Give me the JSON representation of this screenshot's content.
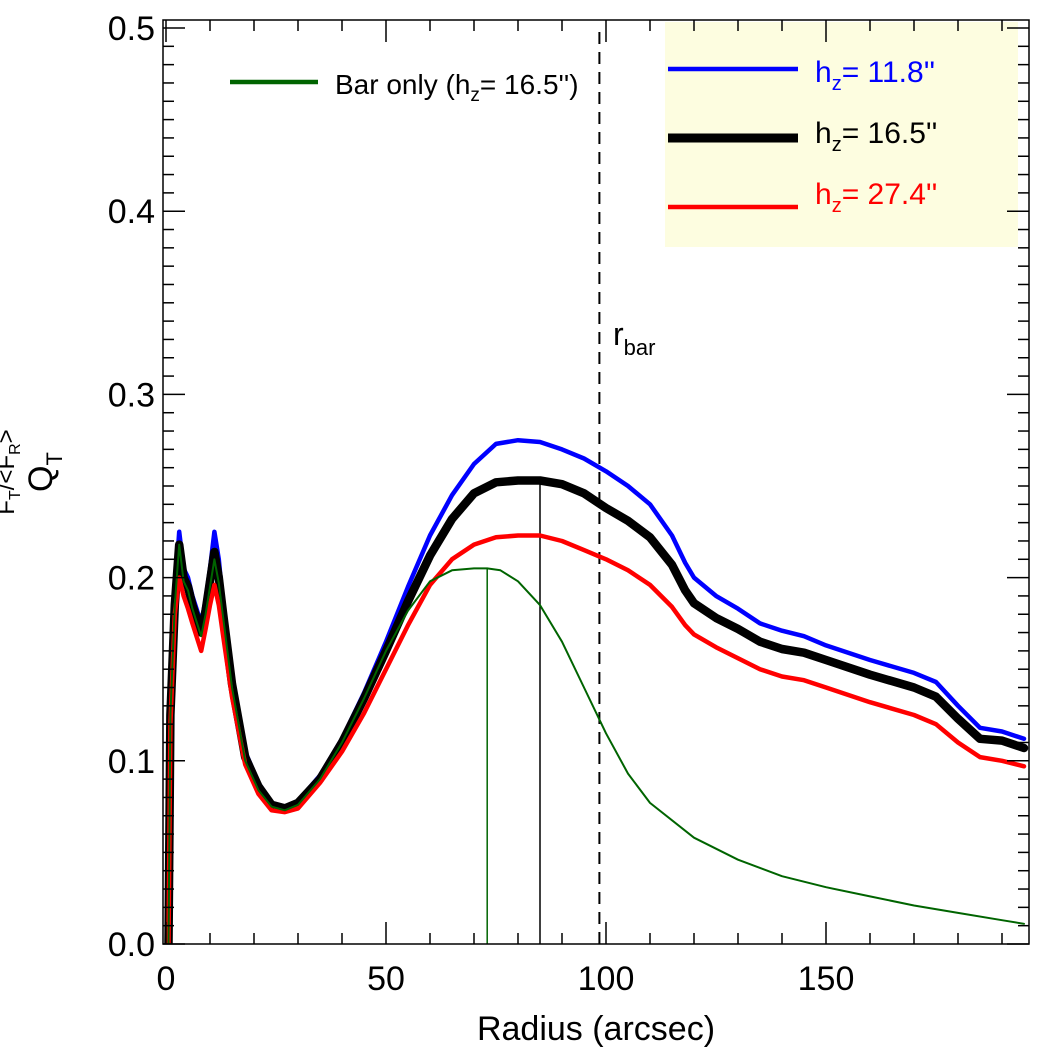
{
  "chart_data": {
    "type": "line",
    "title": "",
    "xlabel": "Radius (arcsec)",
    "ylabel_main": "Q",
    "ylabel_main_sub": "T",
    "ylabel_secondary": "F",
    "ylabel_secondary_sub1": "T",
    "ylabel_secondary_mid": "/<F",
    "ylabel_secondary_sub2": "R",
    "ylabel_secondary_end": ">",
    "xlim": [
      0,
      195
    ],
    "ylim": [
      0,
      0.5
    ],
    "xticks": [
      0,
      50,
      100,
      150
    ],
    "xtick_labels": [
      "0",
      "50",
      "100",
      "150"
    ],
    "yticks": [
      0.0,
      0.1,
      0.2,
      0.3,
      0.4,
      0.5
    ],
    "ytick_labels": [
      "0.0",
      "0.1",
      "0.2",
      "0.3",
      "0.4",
      "0.5"
    ],
    "grid": false,
    "legend_box": {
      "placement": "top-right",
      "background": "#fdfde0",
      "entries": [
        {
          "name_prefix": "h",
          "name_sub": "z",
          "name_suffix": "=  11.8''",
          "color": "#0000ff"
        },
        {
          "name_prefix": "h",
          "name_sub": "z",
          "name_suffix": "=  16.5''",
          "color": "#000000"
        },
        {
          "name_prefix": "h",
          "name_sub": "z",
          "name_suffix": "=  27.4''",
          "color": "#ff0000"
        }
      ]
    },
    "legend_bar": {
      "placement": "top-left",
      "color": "#006400",
      "name_prefix": "Bar only (h",
      "name_sub": "z",
      "name_suffix": "=  16.5'')"
    },
    "annotation": {
      "text": "r",
      "sub": "bar"
    },
    "vlines": [
      {
        "x": 73,
        "y_to": 0.205,
        "color": "#006400",
        "style": "solid"
      },
      {
        "x": 85,
        "y_to": 0.253,
        "color": "#000000",
        "style": "solid"
      },
      {
        "x": 98.5,
        "y_to": 0.5,
        "color": "#000000",
        "style": "dashed"
      }
    ],
    "series": [
      {
        "name": "h_z= 11.8''",
        "color": "#0000ff",
        "width": 4.5,
        "x": [
          0.5,
          1.0,
          2.0,
          3.0,
          4.0,
          5.0,
          6.0,
          8.0,
          9.0,
          10.0,
          11.0,
          12.0,
          13.0,
          15.0,
          18.0,
          21.0,
          24.0,
          27.0,
          30.0,
          35.0,
          40.0,
          45.0,
          50.0,
          55.0,
          60.0,
          65.0,
          70.0,
          75.0,
          80.0,
          85.0,
          90.0,
          95.0,
          100.0,
          105.0,
          110.0,
          115.0,
          118.0,
          120.0,
          125.0,
          130.0,
          135.0,
          140.0,
          145.0,
          150.0,
          160.0,
          170.0,
          175.0,
          180.0,
          185.0,
          190.0,
          195.0
        ],
        "y": [
          -0.02,
          0.13,
          0.19,
          0.225,
          0.205,
          0.2,
          0.19,
          0.175,
          0.188,
          0.205,
          0.225,
          0.21,
          0.185,
          0.145,
          0.105,
          0.088,
          0.077,
          0.075,
          0.078,
          0.092,
          0.112,
          0.137,
          0.165,
          0.195,
          0.223,
          0.245,
          0.262,
          0.273,
          0.275,
          0.274,
          0.27,
          0.265,
          0.258,
          0.25,
          0.24,
          0.223,
          0.208,
          0.2,
          0.19,
          0.183,
          0.175,
          0.171,
          0.168,
          0.163,
          0.155,
          0.148,
          0.143,
          0.13,
          0.118,
          0.116,
          0.112
        ]
      },
      {
        "name": "h_z= 16.5''",
        "color": "#000000",
        "width": 8.5,
        "x": [
          0.5,
          1.0,
          2.0,
          3.0,
          4.0,
          5.0,
          6.0,
          8.0,
          9.0,
          10.0,
          11.0,
          12.0,
          13.0,
          15.0,
          18.0,
          21.0,
          24.0,
          27.0,
          30.0,
          35.0,
          40.0,
          45.0,
          50.0,
          55.0,
          60.0,
          65.0,
          70.0,
          75.0,
          80.0,
          85.0,
          90.0,
          95.0,
          100.0,
          105.0,
          110.0,
          115.0,
          118.0,
          120.0,
          125.0,
          130.0,
          135.0,
          140.0,
          145.0,
          150.0,
          160.0,
          170.0,
          175.0,
          180.0,
          185.0,
          190.0,
          195.0
        ],
        "y": [
          -0.02,
          0.125,
          0.185,
          0.218,
          0.2,
          0.195,
          0.185,
          0.17,
          0.182,
          0.198,
          0.214,
          0.2,
          0.18,
          0.142,
          0.102,
          0.086,
          0.076,
          0.074,
          0.077,
          0.09,
          0.11,
          0.134,
          0.16,
          0.187,
          0.212,
          0.232,
          0.246,
          0.252,
          0.253,
          0.253,
          0.251,
          0.246,
          0.238,
          0.231,
          0.222,
          0.207,
          0.193,
          0.186,
          0.178,
          0.172,
          0.165,
          0.161,
          0.159,
          0.155,
          0.147,
          0.14,
          0.135,
          0.123,
          0.112,
          0.111,
          0.107
        ]
      },
      {
        "name": "h_z= 27.4''",
        "color": "#ff0000",
        "width": 4.5,
        "x": [
          0.5,
          1.0,
          2.0,
          3.0,
          4.0,
          5.0,
          6.0,
          8.0,
          9.0,
          10.0,
          11.0,
          12.0,
          13.0,
          15.0,
          18.0,
          21.0,
          24.0,
          27.0,
          30.0,
          35.0,
          40.0,
          45.0,
          50.0,
          55.0,
          60.0,
          65.0,
          70.0,
          75.0,
          80.0,
          85.0,
          90.0,
          95.0,
          100.0,
          105.0,
          110.0,
          115.0,
          118.0,
          120.0,
          125.0,
          130.0,
          135.0,
          140.0,
          145.0,
          150.0,
          160.0,
          170.0,
          175.0,
          180.0,
          185.0,
          190.0,
          195.0
        ],
        "y": [
          -0.02,
          0.12,
          0.18,
          0.2,
          0.19,
          0.183,
          0.175,
          0.16,
          0.172,
          0.185,
          0.196,
          0.185,
          0.168,
          0.135,
          0.098,
          0.082,
          0.073,
          0.072,
          0.074,
          0.088,
          0.105,
          0.126,
          0.15,
          0.174,
          0.196,
          0.21,
          0.218,
          0.222,
          0.223,
          0.223,
          0.22,
          0.215,
          0.21,
          0.204,
          0.196,
          0.184,
          0.174,
          0.169,
          0.162,
          0.156,
          0.15,
          0.146,
          0.144,
          0.14,
          0.132,
          0.125,
          0.12,
          0.11,
          0.102,
          0.1,
          0.097
        ]
      },
      {
        "name": "Bar only (h_z= 16.5'')",
        "color": "#006400",
        "width": 2,
        "x": [
          0.5,
          1.0,
          2.0,
          3.0,
          4.0,
          5.0,
          6.0,
          8.0,
          9.0,
          10.0,
          11.0,
          12.0,
          13.0,
          15.0,
          18.0,
          21.0,
          24.0,
          27.0,
          30.0,
          35.0,
          40.0,
          45.0,
          50.0,
          55.0,
          60.0,
          65.0,
          70.0,
          73.0,
          76.0,
          80.0,
          85.0,
          90.0,
          95.0,
          100.0,
          105.0,
          110.0,
          120.0,
          130.0,
          140.0,
          150.0,
          160.0,
          170.0,
          180.0,
          190.0,
          195.0
        ],
        "y": [
          -0.02,
          0.125,
          0.185,
          0.218,
          0.198,
          0.193,
          0.183,
          0.168,
          0.18,
          0.195,
          0.21,
          0.197,
          0.178,
          0.14,
          0.1,
          0.084,
          0.075,
          0.073,
          0.076,
          0.09,
          0.11,
          0.134,
          0.16,
          0.182,
          0.198,
          0.204,
          0.205,
          0.205,
          0.204,
          0.198,
          0.185,
          0.165,
          0.14,
          0.115,
          0.093,
          0.077,
          0.058,
          0.046,
          0.037,
          0.031,
          0.026,
          0.021,
          0.017,
          0.013,
          0.011
        ]
      }
    ]
  }
}
